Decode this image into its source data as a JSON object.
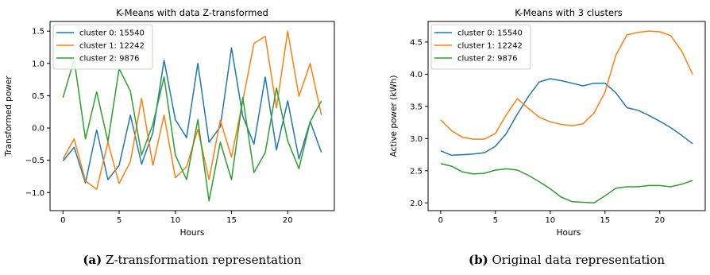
{
  "charts": [
    {
      "type": "line",
      "title": "K-Means with data Z-transformed",
      "xlabel": "Hours",
      "ylabel": "Transformed power",
      "xlim": [
        -1.15,
        24.15
      ],
      "ylim": [
        -1.28,
        1.65
      ],
      "xticks": [
        0,
        5,
        10,
        15,
        20
      ],
      "yticks": [
        -1.0,
        -0.5,
        0.0,
        0.5,
        1.0,
        1.5
      ],
      "ytick_labels": [
        "−1.0",
        "−0.5",
        "0.0",
        "0.5",
        "1.0",
        "1.5"
      ],
      "legend_position": "upper-left",
      "grid": false,
      "x": [
        0,
        1,
        2,
        3,
        4,
        5,
        6,
        7,
        8,
        9,
        10,
        11,
        12,
        13,
        14,
        15,
        16,
        17,
        18,
        19,
        20,
        21,
        22,
        23
      ],
      "series": [
        {
          "name": "cluster 0: 15540",
          "color": "#1f77b4",
          "values": [
            -0.51,
            -0.3,
            -0.85,
            -0.03,
            -0.8,
            -0.58,
            0.2,
            -0.56,
            -0.07,
            1.05,
            0.13,
            -0.15,
            1.0,
            -0.22,
            0.02,
            1.24,
            0.18,
            -0.25,
            0.79,
            -0.34,
            0.42,
            -0.48,
            0.1,
            -0.38
          ]
        },
        {
          "name": "cluster 1: 12242",
          "color": "#ff7f0e",
          "values": [
            -0.48,
            -0.17,
            -0.82,
            -0.95,
            -0.22,
            -0.86,
            -0.52,
            0.46,
            -0.58,
            0.2,
            -0.77,
            -0.6,
            -0.02,
            -0.8,
            0.12,
            -0.45,
            0.42,
            1.31,
            1.42,
            0.31,
            1.5,
            0.49,
            1.0,
            0.2
          ]
        },
        {
          "name": "cluster 2: 9876",
          "color": "#2ca02c",
          "values": [
            0.47,
            1.06,
            -0.17,
            0.56,
            -0.21,
            0.92,
            0.57,
            -0.42,
            0.06,
            0.79,
            -0.42,
            -0.8,
            0.13,
            -1.13,
            -0.22,
            -0.8,
            0.47,
            -0.69,
            -0.38,
            0.62,
            -0.2,
            -0.63,
            0.1,
            0.42
          ]
        }
      ]
    },
    {
      "type": "line",
      "title": "K-Means with 3 clusters",
      "xlabel": "Hours",
      "ylabel": "Active power (kWh)",
      "xlim": [
        -1.15,
        24.15
      ],
      "ylim": [
        1.88,
        4.82
      ],
      "xticks": [
        0,
        5,
        10,
        15,
        20
      ],
      "yticks": [
        2.0,
        2.5,
        3.0,
        3.5,
        4.0,
        4.5
      ],
      "ytick_labels": [
        "2.0",
        "2.5",
        "3.0",
        "3.5",
        "4.0",
        "4.5"
      ],
      "legend_position": "upper-left",
      "grid": false,
      "x": [
        0,
        1,
        2,
        3,
        4,
        5,
        6,
        7,
        8,
        9,
        10,
        11,
        12,
        13,
        14,
        15,
        16,
        17,
        18,
        19,
        20,
        21,
        22,
        23
      ],
      "series": [
        {
          "name": "cluster 0: 15540",
          "color": "#1f77b4",
          "values": [
            2.81,
            2.74,
            2.75,
            2.76,
            2.78,
            2.88,
            3.08,
            3.38,
            3.65,
            3.88,
            3.93,
            3.9,
            3.86,
            3.82,
            3.86,
            3.86,
            3.71,
            3.48,
            3.44,
            3.36,
            3.27,
            3.17,
            3.05,
            2.92
          ]
        },
        {
          "name": "cluster 1: 12242",
          "color": "#ff7f0e",
          "values": [
            3.29,
            3.12,
            3.02,
            2.99,
            2.99,
            3.08,
            3.37,
            3.62,
            3.47,
            3.33,
            3.26,
            3.22,
            3.2,
            3.23,
            3.4,
            3.72,
            4.3,
            4.61,
            4.65,
            4.67,
            4.66,
            4.6,
            4.36,
            4.0
          ]
        },
        {
          "name": "cluster 2: 9876",
          "color": "#2ca02c",
          "values": [
            2.61,
            2.57,
            2.48,
            2.45,
            2.46,
            2.51,
            2.53,
            2.51,
            2.43,
            2.33,
            2.22,
            2.09,
            2.02,
            2.01,
            2.0,
            2.11,
            2.23,
            2.25,
            2.25,
            2.27,
            2.27,
            2.25,
            2.29,
            2.35
          ]
        }
      ]
    }
  ],
  "captions": [
    {
      "label": "(a)",
      "text": "Z-transformation representation"
    },
    {
      "label": "(b)",
      "text": "Original data representation"
    }
  ]
}
